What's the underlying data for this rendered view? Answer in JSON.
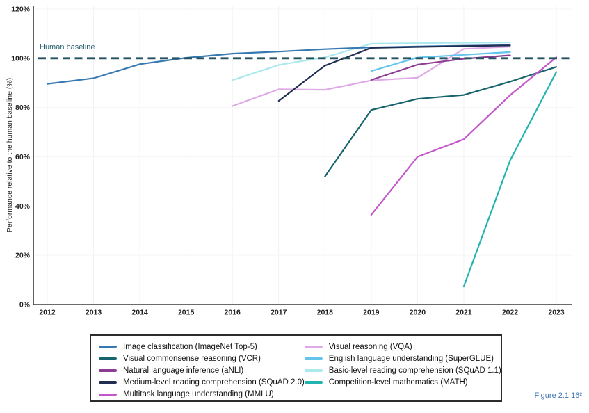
{
  "figure_caption": "Figure 2.1.16²",
  "chart_data": {
    "type": "line",
    "title": "",
    "xlabel": "",
    "ylabel": "Performance relative to the human baseline (%)",
    "x_ticks": [
      2012,
      2013,
      2014,
      2015,
      2016,
      2017,
      2018,
      2019,
      2020,
      2021,
      2022,
      2023
    ],
    "y_ticks": [
      0,
      20,
      40,
      60,
      80,
      100,
      120
    ],
    "y_tick_suffix": "%",
    "xlim": [
      2012,
      2023
    ],
    "ylim": [
      0,
      120
    ],
    "grid": true,
    "legend_position": "bottom-box",
    "human_baseline": {
      "label": "Human baseline",
      "value": 100,
      "style": "dashed",
      "color": "#24525e"
    },
    "series": [
      {
        "name": "Image classification (ImageNet Top-5)",
        "short": "imagenet-top5",
        "color": "#3679b2",
        "points": [
          [
            2012,
            89.6
          ],
          [
            2013,
            91.9
          ],
          [
            2014,
            97.6
          ],
          [
            2015,
            100.2
          ],
          [
            2016,
            101.9
          ],
          [
            2017,
            102.7
          ],
          [
            2018,
            103.7
          ],
          [
            2019,
            104.4
          ],
          [
            2020,
            104.8
          ],
          [
            2021,
            105.1
          ],
          [
            2022,
            105.3
          ]
        ]
      },
      {
        "name": "Visual commonsense reasoning (VCR)",
        "short": "vcr",
        "color": "#17646d",
        "points": [
          [
            2018,
            52.0
          ],
          [
            2019,
            79.0
          ],
          [
            2020,
            83.5
          ],
          [
            2021,
            85.1
          ],
          [
            2022,
            90.5
          ],
          [
            2023,
            96.5
          ]
        ]
      },
      {
        "name": "Natural language inference (aNLI)",
        "short": "anli",
        "color": "#8d3c94",
        "points": [
          [
            2019,
            91.2
          ],
          [
            2020,
            97.4
          ],
          [
            2021,
            99.8
          ],
          [
            2022,
            101.2
          ]
        ]
      },
      {
        "name": "Medium-level reading comprehension (SQuAD 2.0)",
        "short": "squad-2-0",
        "color": "#202e52",
        "points": [
          [
            2017,
            82.7
          ],
          [
            2018,
            97.0
          ],
          [
            2019,
            104.2
          ],
          [
            2020,
            104.6
          ],
          [
            2021,
            104.9
          ],
          [
            2022,
            105.2
          ]
        ]
      },
      {
        "name": "Multitask language understanding (MMLU)",
        "short": "mmlu",
        "color": "#c356cb",
        "points": [
          [
            2019,
            36.4
          ],
          [
            2020,
            60.0
          ],
          [
            2021,
            67.1
          ],
          [
            2022,
            85.0
          ],
          [
            2023,
            100.4
          ]
        ]
      },
      {
        "name": "Visual reasoning (VQA)",
        "short": "vqa",
        "color": "#dfa9e6",
        "points": [
          [
            2016,
            80.6
          ],
          [
            2017,
            87.4
          ],
          [
            2018,
            87.2
          ],
          [
            2019,
            91.0
          ],
          [
            2020,
            92.1
          ],
          [
            2021,
            103.8
          ],
          [
            2022,
            104.7
          ]
        ]
      },
      {
        "name": "English language understanding (SuperGLUE)",
        "short": "superglue",
        "color": "#64c5ec",
        "points": [
          [
            2019,
            94.8
          ],
          [
            2020,
            100.3
          ],
          [
            2021,
            101.4
          ],
          [
            2022,
            102.5
          ]
        ]
      },
      {
        "name": "Basic-level reading comprehension (SQuAD 1.1)",
        "short": "squad-1-1",
        "color": "#abe9ef",
        "points": [
          [
            2016,
            91.1
          ],
          [
            2017,
            97.3
          ],
          [
            2018,
            100.4
          ],
          [
            2019,
            105.9
          ],
          [
            2020,
            106.1
          ],
          [
            2021,
            106.3
          ],
          [
            2022,
            106.4
          ]
        ]
      },
      {
        "name": "Competition-level mathematics (MATH)",
        "short": "math",
        "color": "#21b3ae",
        "points": [
          [
            2021,
            7.3
          ],
          [
            2022,
            58.5
          ],
          [
            2023,
            94.4
          ]
        ]
      }
    ]
  }
}
